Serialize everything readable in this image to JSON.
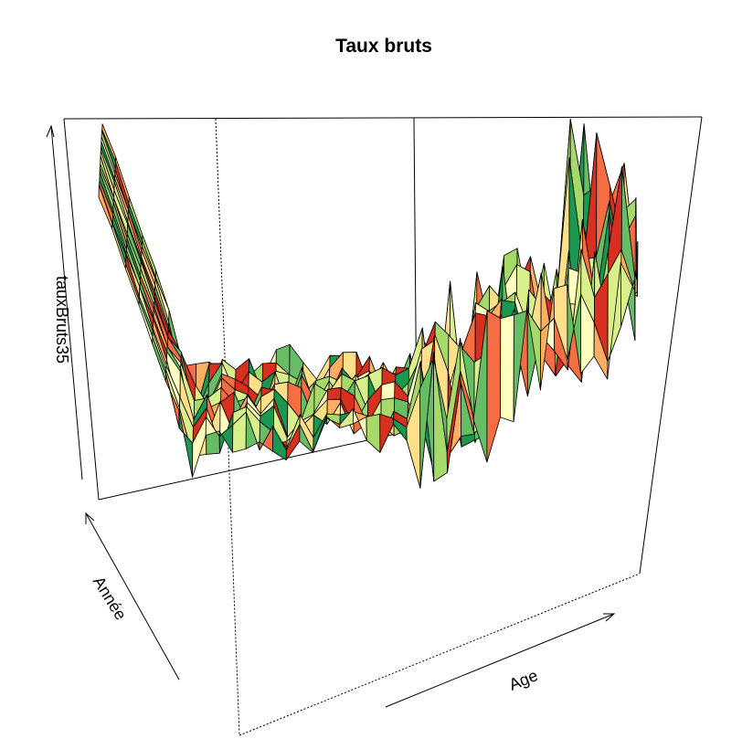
{
  "chart_data": {
    "type": "surface-3d",
    "title": "Taux bruts",
    "xlabel": "Age",
    "ylabel": "Année",
    "zlabel": "tauxBruts35",
    "axis_ticks": false,
    "palette": [
      "#d7301f",
      "#f46d43",
      "#fdae61",
      "#fee08b",
      "#ffffbf",
      "#d9ef8b",
      "#a6d96a",
      "#66bd63",
      "#1a9850"
    ],
    "description": "Perspective surface of crude rates: high at youngest ages, low trough at middle ages, rising and highly variable at oldest ages"
  }
}
